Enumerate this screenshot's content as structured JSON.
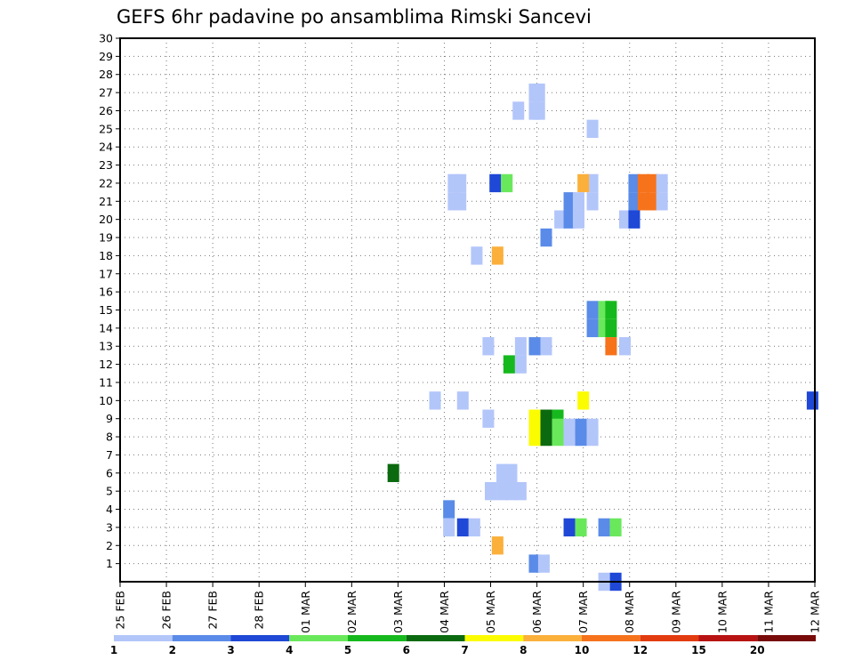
{
  "chart_data": {
    "type": "heatmap",
    "title": "GEFS 6hr padavine po ansamblima Rimski Sancevi",
    "x_ticks": [
      "25 FEB",
      "26 FEB",
      "27 FEB",
      "28 FEB",
      "01 MAR",
      "02 MAR",
      "03 MAR",
      "04 MAR",
      "05 MAR",
      "06 MAR",
      "07 MAR",
      "08 MAR",
      "09 MAR",
      "10 MAR",
      "11 MAR",
      "12 MAR"
    ],
    "y_ticks": [
      "1",
      "2",
      "3",
      "4",
      "5",
      "6",
      "7",
      "8",
      "9",
      "10",
      "11",
      "12",
      "13",
      "14",
      "15",
      "16",
      "17",
      "18",
      "19",
      "20",
      "21",
      "22",
      "23",
      "24",
      "25",
      "26",
      "27",
      "28",
      "29",
      "30"
    ],
    "ylim": [
      0,
      30
    ],
    "x_range_days": [
      0,
      15
    ],
    "grid": true,
    "legend_position": "bottom",
    "legend_labels": [
      "1",
      "2",
      "3",
      "4",
      "5",
      "6",
      "7",
      "8",
      "10",
      "12",
      "15",
      "20"
    ],
    "legend_colors": [
      "#b3c6fa",
      "#5a8be8",
      "#1f48d6",
      "#6ae85c",
      "#16b91d",
      "#0b6a0f",
      "#fcfc00",
      "#fbb03c",
      "#f6731c",
      "#e23b10",
      "#b81212",
      "#780a0a"
    ],
    "cells": [
      {
        "day": 8.95,
        "member": 27,
        "level": 0
      },
      {
        "day": 9.05,
        "member": 27,
        "level": 0
      },
      {
        "day": 8.95,
        "member": 26,
        "level": 0
      },
      {
        "day": 9.05,
        "member": 26,
        "level": 0
      },
      {
        "day": 8.6,
        "member": 26,
        "level": 0
      },
      {
        "day": 10.2,
        "member": 25,
        "level": 0
      },
      {
        "day": 10.2,
        "member": 22,
        "level": 0
      },
      {
        "day": 7.2,
        "member": 22,
        "level": 0
      },
      {
        "day": 7.35,
        "member": 22,
        "level": 0
      },
      {
        "day": 7.2,
        "member": 21,
        "level": 0
      },
      {
        "day": 7.35,
        "member": 21,
        "level": 0
      },
      {
        "day": 8.1,
        "member": 22,
        "level": 2
      },
      {
        "day": 8.35,
        "member": 22,
        "level": 3
      },
      {
        "day": 10.0,
        "member": 22,
        "level": 7
      },
      {
        "day": 11.1,
        "member": 22,
        "level": 1
      },
      {
        "day": 11.3,
        "member": 22,
        "level": 8
      },
      {
        "day": 11.5,
        "member": 22,
        "level": 8
      },
      {
        "day": 11.7,
        "member": 22,
        "level": 0
      },
      {
        "day": 10.2,
        "member": 21,
        "level": 0
      },
      {
        "day": 11.1,
        "member": 21,
        "level": 1
      },
      {
        "day": 11.3,
        "member": 21,
        "level": 8
      },
      {
        "day": 11.5,
        "member": 21,
        "level": 8
      },
      {
        "day": 11.7,
        "member": 21,
        "level": 0
      },
      {
        "day": 9.5,
        "member": 20,
        "level": 0
      },
      {
        "day": 9.7,
        "member": 20,
        "level": 1
      },
      {
        "day": 9.9,
        "member": 20,
        "level": 0
      },
      {
        "day": 10.9,
        "member": 20,
        "level": 0
      },
      {
        "day": 11.1,
        "member": 20,
        "level": 2
      },
      {
        "day": 9.7,
        "member": 21,
        "level": 1
      },
      {
        "day": 9.9,
        "member": 21,
        "level": 0
      },
      {
        "day": 9.2,
        "member": 19,
        "level": 1
      },
      {
        "day": 7.7,
        "member": 18,
        "level": 0
      },
      {
        "day": 8.15,
        "member": 18,
        "level": 7
      },
      {
        "day": 10.2,
        "member": 15,
        "level": 1
      },
      {
        "day": 10.45,
        "member": 15,
        "level": 3
      },
      {
        "day": 10.6,
        "member": 15,
        "level": 4
      },
      {
        "day": 10.2,
        "member": 14,
        "level": 1
      },
      {
        "day": 10.45,
        "member": 14,
        "level": 3
      },
      {
        "day": 10.6,
        "member": 14,
        "level": 4
      },
      {
        "day": 7.95,
        "member": 13,
        "level": 0
      },
      {
        "day": 8.65,
        "member": 13,
        "level": 0
      },
      {
        "day": 8.95,
        "member": 13,
        "level": 1
      },
      {
        "day": 9.2,
        "member": 13,
        "level": 0
      },
      {
        "day": 10.6,
        "member": 13,
        "level": 8
      },
      {
        "day": 10.9,
        "member": 13,
        "level": 0
      },
      {
        "day": 8.65,
        "member": 12,
        "level": 0
      },
      {
        "day": 8.4,
        "member": 12,
        "level": 4
      },
      {
        "day": 6.8,
        "member": 10,
        "level": 0
      },
      {
        "day": 7.4,
        "member": 10,
        "level": 0
      },
      {
        "day": 10.0,
        "member": 10,
        "level": 6
      },
      {
        "day": 14.95,
        "member": 10,
        "level": 2
      },
      {
        "day": 7.95,
        "member": 9,
        "level": 0
      },
      {
        "day": 9.45,
        "member": 9,
        "level": 4
      },
      {
        "day": 8.95,
        "member": 8,
        "level": 6
      },
      {
        "day": 9.2,
        "member": 8,
        "level": 5
      },
      {
        "day": 9.45,
        "member": 8,
        "level": 3
      },
      {
        "day": 9.7,
        "member": 8,
        "level": 0
      },
      {
        "day": 9.95,
        "member": 8,
        "level": 1
      },
      {
        "day": 10.2,
        "member": 8,
        "level": 0
      },
      {
        "day": 9.2,
        "member": 9,
        "level": 5
      },
      {
        "day": 8.95,
        "member": 9,
        "level": 6
      },
      {
        "day": 9.2,
        "member": 8.5,
        "level": 5
      },
      {
        "day": 9.45,
        "member": 8.5,
        "level": 3
      },
      {
        "day": 9.7,
        "member": 8.5,
        "level": 0
      },
      {
        "day": 9.95,
        "member": 8.5,
        "level": 1
      },
      {
        "day": 10.2,
        "member": 8.5,
        "level": 0
      },
      {
        "day": 8.95,
        "member": 8.5,
        "level": 6
      },
      {
        "day": 5.9,
        "member": 6,
        "level": 5
      },
      {
        "day": 8.25,
        "member": 6,
        "level": 0
      },
      {
        "day": 8.45,
        "member": 6,
        "level": 0
      },
      {
        "day": 8.0,
        "member": 5,
        "level": 0
      },
      {
        "day": 8.25,
        "member": 5,
        "level": 0
      },
      {
        "day": 8.45,
        "member": 5,
        "level": 0
      },
      {
        "day": 8.65,
        "member": 5,
        "level": 0
      },
      {
        "day": 7.1,
        "member": 4,
        "level": 1
      },
      {
        "day": 7.1,
        "member": 3,
        "level": 0
      },
      {
        "day": 7.4,
        "member": 3,
        "level": 2
      },
      {
        "day": 7.65,
        "member": 3,
        "level": 0
      },
      {
        "day": 9.7,
        "member": 3,
        "level": 2
      },
      {
        "day": 9.95,
        "member": 3,
        "level": 3
      },
      {
        "day": 10.45,
        "member": 3,
        "level": 1
      },
      {
        "day": 10.7,
        "member": 3,
        "level": 3
      },
      {
        "day": 8.15,
        "member": 2,
        "level": 7
      },
      {
        "day": 8.95,
        "member": 1,
        "level": 1
      },
      {
        "day": 9.15,
        "member": 1,
        "level": 0
      },
      {
        "day": 10.45,
        "member": 0,
        "level": 0
      },
      {
        "day": 10.7,
        "member": 0,
        "level": 2
      }
    ]
  }
}
